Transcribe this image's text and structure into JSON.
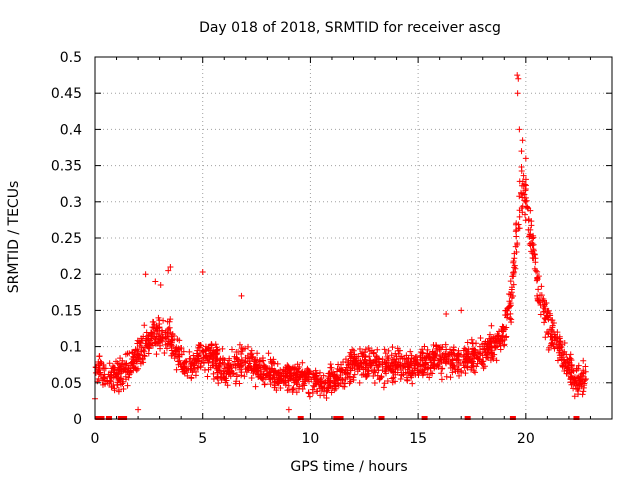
{
  "chart_data": {
    "type": "scatter",
    "title": "Day 018 of 2018, SRMTID for receiver ascg",
    "xlabel": "GPS time / hours",
    "ylabel": "SRMTID / TECUs",
    "xlim": [
      0,
      24
    ],
    "ylim": [
      0,
      0.5
    ],
    "x_ticks": [
      0,
      5,
      10,
      15,
      20
    ],
    "x_tick_labels": [
      "0",
      "5",
      "10",
      "15",
      "20"
    ],
    "y_ticks": [
      0,
      0.05,
      0.1,
      0.15,
      0.2,
      0.25,
      0.3,
      0.35,
      0.4,
      0.45,
      0.5
    ],
    "y_tick_labels": [
      "0",
      "0.05",
      "0.1",
      "0.15",
      "0.2",
      "0.25",
      "0.3",
      "0.35",
      "0.4",
      "0.45",
      "0.5"
    ],
    "grid": true,
    "marker": "+",
    "color": "#ff0000",
    "series": [
      {
        "name": "SRMTID",
        "profile_x": [
          0,
          0.5,
          1,
          1.5,
          2,
          2.5,
          3,
          3.5,
          4,
          4.5,
          5,
          5.5,
          6,
          6.5,
          7,
          7.5,
          8,
          8.5,
          9,
          9.5,
          10,
          10.5,
          11,
          11.5,
          12,
          12.5,
          13,
          13.5,
          14,
          14.5,
          15,
          15.5,
          16,
          16.5,
          17,
          17.5,
          18,
          18.5,
          19,
          19.3,
          19.6,
          19.8,
          20,
          20.3,
          20.6,
          21,
          21.5,
          22,
          22.3,
          22.8
        ],
        "profile_y": [
          0.07,
          0.06,
          0.055,
          0.07,
          0.09,
          0.11,
          0.12,
          0.11,
          0.08,
          0.07,
          0.09,
          0.08,
          0.07,
          0.075,
          0.08,
          0.07,
          0.065,
          0.06,
          0.06,
          0.055,
          0.055,
          0.05,
          0.05,
          0.06,
          0.075,
          0.08,
          0.075,
          0.07,
          0.075,
          0.07,
          0.075,
          0.08,
          0.085,
          0.08,
          0.08,
          0.085,
          0.09,
          0.1,
          0.12,
          0.16,
          0.26,
          0.32,
          0.3,
          0.24,
          0.17,
          0.13,
          0.1,
          0.07,
          0.05,
          0.06
        ],
        "spread": 0.028,
        "x_range": [
          0,
          22.8
        ],
        "peak_points": [
          {
            "x": 19.6,
            "y": 0.475
          },
          {
            "x": 19.65,
            "y": 0.47
          },
          {
            "x": 19.62,
            "y": 0.45
          },
          {
            "x": 19.7,
            "y": 0.4
          },
          {
            "x": 19.85,
            "y": 0.385
          },
          {
            "x": 19.8,
            "y": 0.37
          },
          {
            "x": 20.0,
            "y": 0.36
          },
          {
            "x": 2.35,
            "y": 0.2
          },
          {
            "x": 3.5,
            "y": 0.21
          },
          {
            "x": 3.4,
            "y": 0.205
          },
          {
            "x": 5.0,
            "y": 0.203
          },
          {
            "x": 2.8,
            "y": 0.19
          },
          {
            "x": 3.05,
            "y": 0.185
          },
          {
            "x": 6.8,
            "y": 0.17
          },
          {
            "x": 16.3,
            "y": 0.145
          },
          {
            "x": 17.0,
            "y": 0.15
          },
          {
            "x": 2.0,
            "y": 0.013
          },
          {
            "x": 9.0,
            "y": 0.013
          },
          {
            "x": 0.0,
            "y": 0.028
          }
        ],
        "zero_points_x": [
          0.15,
          0.3,
          0.65,
          1.2,
          1.35,
          9.55,
          11.2,
          11.4,
          13.3,
          15.3,
          17.3,
          19.4,
          22.35
        ]
      }
    ]
  }
}
